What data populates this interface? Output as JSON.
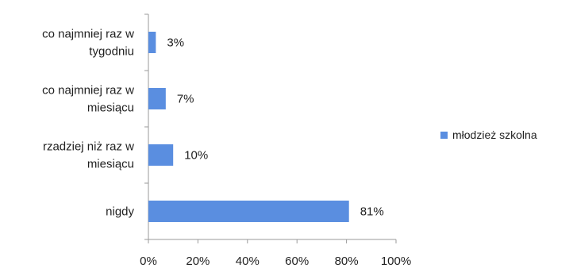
{
  "chart_data": {
    "type": "bar",
    "orientation": "horizontal",
    "categories": [
      [
        "co najmniej raz w",
        "tygodniu"
      ],
      [
        "co najmniej raz w",
        "miesiącu"
      ],
      [
        "rzadziej niż raz w",
        "miesiącu"
      ],
      [
        "nigdy"
      ]
    ],
    "series": [
      {
        "name": "młodzież szkolna",
        "values": [
          3,
          7,
          10,
          81
        ],
        "labels": [
          "3%",
          "7%",
          "10%",
          "81%"
        ],
        "color": "#5a8ee0"
      }
    ],
    "xlim": [
      0,
      100
    ],
    "ticks": [
      "0%",
      "20%",
      "40%",
      "60%",
      "80%",
      "100%"
    ],
    "grid": false,
    "legend_position": "right"
  }
}
